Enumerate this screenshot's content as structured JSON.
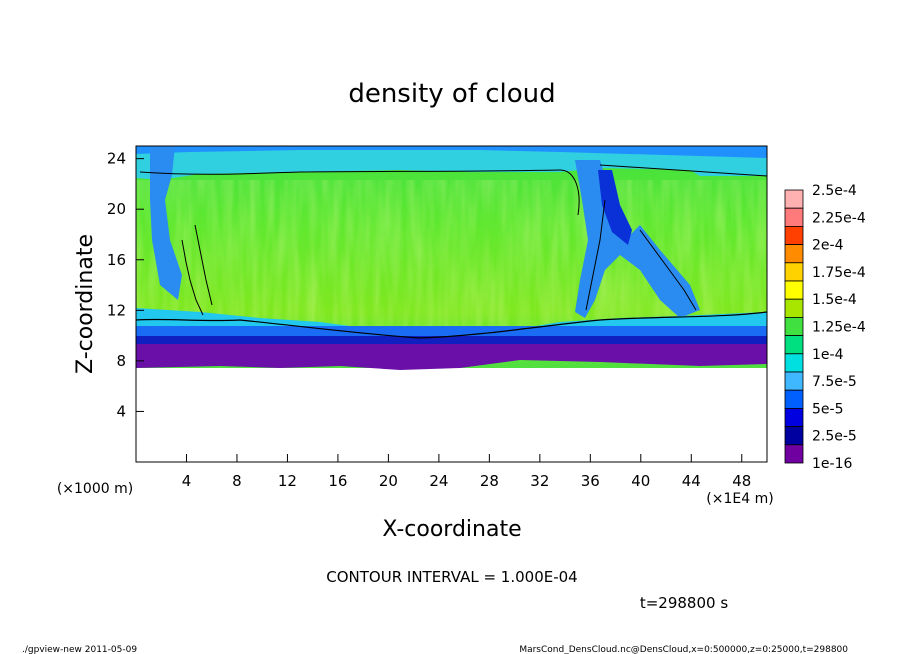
{
  "chart_data": {
    "type": "heatmap",
    "title": "density of cloud",
    "xlabel": "X-coordinate",
    "ylabel": "Z-coordinate",
    "x_unit_left": "(×1000 m)",
    "x_unit_right": "(×1E4 m)",
    "xlim": [
      0,
      50
    ],
    "ylim": [
      0,
      25
    ],
    "xticks": [
      "4",
      "8",
      "12",
      "16",
      "20",
      "24",
      "28",
      "32",
      "36",
      "40",
      "44",
      "48"
    ],
    "xtick_values": [
      4,
      8,
      12,
      16,
      20,
      24,
      28,
      32,
      36,
      40,
      44,
      48
    ],
    "yticks": [
      "4",
      "8",
      "12",
      "16",
      "20",
      "24"
    ],
    "ytick_values": [
      4,
      8,
      12,
      16,
      20,
      24
    ],
    "colorbar": {
      "labels": [
        "2.5e-4",
        "2.25e-4",
        "2e-4",
        "1.75e-4",
        "1.5e-4",
        "1.25e-4",
        "1e-4",
        "7.5e-5",
        "5e-5",
        "2.5e-5",
        "1e-16"
      ],
      "colors": [
        "#ffb0b0",
        "#ff7a7a",
        "#ff4000",
        "#ff8c00",
        "#ffd200",
        "#ffff00",
        "#a8e600",
        "#40e040",
        "#00e080",
        "#00e0e0",
        "#40b8ff",
        "#0060ff",
        "#0000e0",
        "#0000a0",
        "#7000a0"
      ]
    },
    "field_summary": {
      "cloud_base_z": [
        8,
        10
      ],
      "cloud_top_z": 23,
      "bulk_value": "1e-4 to 1.5e-4"
    },
    "contour_interval_text": "CONTOUR INTERVAL = 1.000E-04",
    "time_text": "t=298800 s"
  },
  "footer": {
    "program": "./gpview-new  2011-05-09",
    "source": "MarsCond_DensCloud.nc@DensCloud,x=0:500000,z=0:25000,t=298800"
  }
}
